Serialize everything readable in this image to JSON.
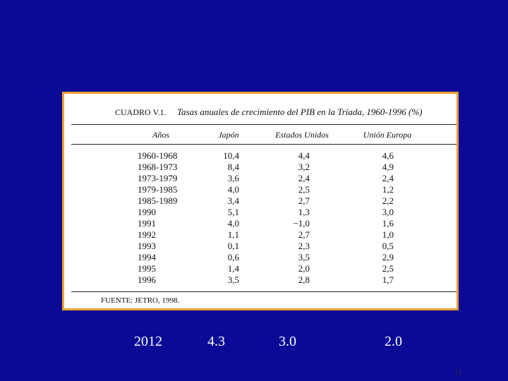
{
  "table": {
    "title_label": "CUADRO V.1.",
    "title": "Tasas anuales de crecimiento del PIB en la Tríada, 1960-1996 (%)",
    "headers": [
      "Años",
      "Japón",
      "Estados Unidos",
      "Unión Europa"
    ],
    "rows": [
      [
        "1960-1968",
        "10,4",
        "4,4",
        "4,6"
      ],
      [
        "1968-1973",
        "8,4",
        "3,2",
        "4,9"
      ],
      [
        "1973-1979",
        "3,6",
        "2,4",
        "2,4"
      ],
      [
        "1979-1985",
        "4,0",
        "2,5",
        "1,2"
      ],
      [
        "1985-1989",
        "3,4",
        "2,7",
        "2,2"
      ],
      [
        "1990",
        "5,1",
        "1,3",
        "3,0"
      ],
      [
        "1991",
        "4,0",
        "−1,0",
        "1,6"
      ],
      [
        "1992",
        "1,1",
        "2,7",
        "1,0"
      ],
      [
        "1993",
        "0,1",
        "2,3",
        "0,5"
      ],
      [
        "1994",
        "0,6",
        "3,5",
        "2,9"
      ],
      [
        "1995",
        "1,4",
        "2,0",
        "2,5"
      ],
      [
        "1996",
        "3,5",
        "2,8",
        "1,7"
      ]
    ],
    "source": "FUENTE: JETRO, 1998."
  },
  "extra_row": [
    "2012",
    "4.3",
    "3.0",
    "2.0"
  ],
  "page_number": "11"
}
